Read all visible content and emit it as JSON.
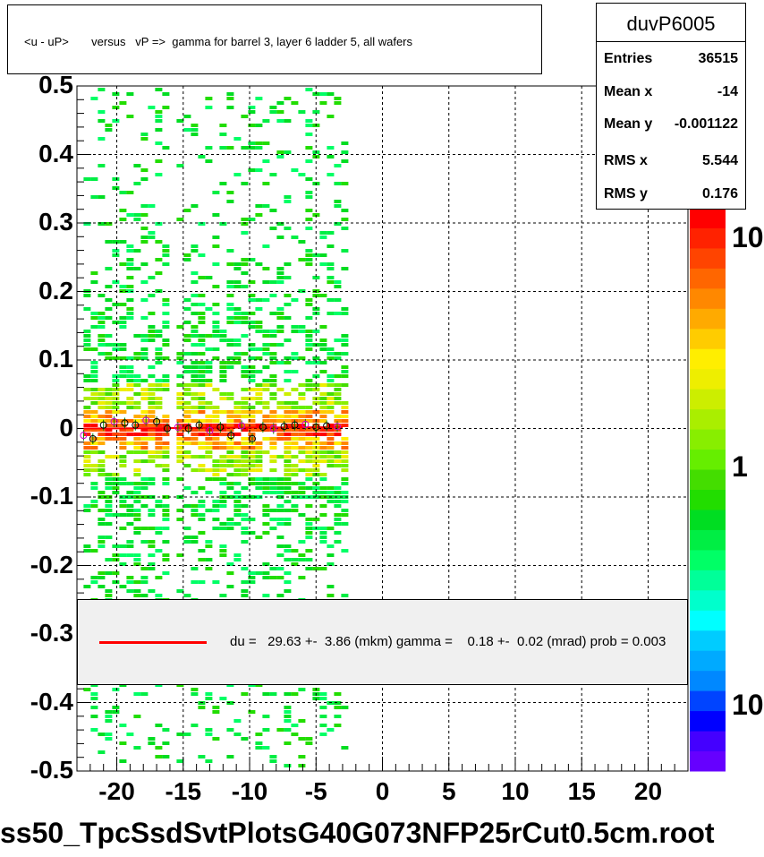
{
  "title": "<u - uP>       versus   vP =>  gamma for barrel 3, layer 6 ladder 5, all wafers",
  "stats": {
    "name": "duvP6005",
    "rows": [
      {
        "label": "Entries",
        "value": "36515"
      },
      {
        "label": "Mean x",
        "value": "-14"
      },
      {
        "label": "Mean y",
        "value": "-0.001122"
      },
      {
        "label": "RMS x",
        "value": "5.544"
      },
      {
        "label": "RMS y",
        "value": "0.176"
      }
    ]
  },
  "legend": {
    "text": "du =   29.63 +-  3.86 (mkm) gamma =    0.18 +-  0.02 (mrad) prob = 0.003",
    "line_color": "#ff0000"
  },
  "footer": "ss50_TpcSsdSvtPlotsG40G073NFP25rCut0.5cm.root",
  "colorbar_labels": [
    "10",
    "1",
    "10"
  ],
  "chart_data": {
    "type": "heatmap",
    "xlim": [
      -23,
      23
    ],
    "ylim": [
      -0.5,
      0.5
    ],
    "x_ticks": [
      "-20",
      "-15",
      "-10",
      "-5",
      "0",
      "5",
      "10",
      "15",
      "20"
    ],
    "y_ticks": [
      "0.5",
      "0.4",
      "0.3",
      "0.2",
      "0.1",
      "0",
      "-0.1",
      "-0.2",
      "-0.3",
      "-0.4",
      "-0.5"
    ],
    "x_tick_values": [
      -20,
      -15,
      -10,
      -5,
      0,
      5,
      10,
      15,
      20
    ],
    "y_tick_values": [
      0.5,
      0.4,
      0.3,
      0.2,
      0.1,
      0,
      -0.1,
      -0.2,
      -0.3,
      -0.4,
      -0.5
    ],
    "data_x_range": [
      -22.5,
      -3
    ],
    "grid": true,
    "fit_line": {
      "x": [
        -22.5,
        -3
      ],
      "y": [
        0.0,
        0.002
      ],
      "color": "#ff0000"
    },
    "profile_points": {
      "x": [
        -22.5,
        -21.8,
        -21,
        -20.2,
        -19.4,
        -18.6,
        -17.8,
        -17,
        -16.2,
        -15.4,
        -14.6,
        -13.8,
        -13,
        -12.2,
        -11.4,
        -10.6,
        -9.8,
        -9,
        -8.2,
        -7.4,
        -6.6,
        -5.8,
        -5,
        -4.2,
        -3.4
      ],
      "y": [
        -0.01,
        -0.015,
        0.005,
        0.01,
        0.008,
        0.005,
        0.012,
        0.01,
        0.0,
        0.002,
        0.0,
        0.005,
        -0.003,
        0.002,
        -0.01,
        0.004,
        -0.015,
        0.002,
        0.0,
        0.003,
        0.005,
        0.006,
        0.002,
        0.004,
        0.003
      ]
    },
    "colormap": [
      "#6600ff",
      "#4400ff",
      "#0000ff",
      "#0044ff",
      "#0088ff",
      "#00aaff",
      "#00ccff",
      "#00ffff",
      "#00ffcc",
      "#00ff99",
      "#00ff66",
      "#00ee44",
      "#00dd22",
      "#22dd00",
      "#44dd00",
      "#66ee00",
      "#88ee00",
      "#aaee00",
      "#ccee00",
      "#eeee00",
      "#ffee00",
      "#ffcc00",
      "#ffaa00",
      "#ff8800",
      "#ff6600",
      "#ff4400",
      "#ff2200",
      "#ff0000"
    ]
  }
}
